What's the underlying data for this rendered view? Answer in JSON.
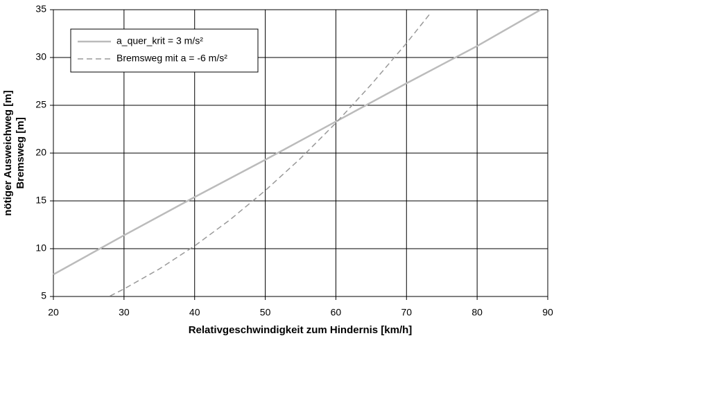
{
  "chart_data": {
    "type": "line",
    "xlabel": "Relativgeschwindigkeit zum Hindernis [km/h]",
    "ylabel": [
      "nötiger Ausweichweg [m]",
      "Bremsweg [m]"
    ],
    "xlim": [
      20,
      90
    ],
    "xticks": [
      20,
      30,
      40,
      50,
      60,
      70,
      80,
      90
    ],
    "ylim": [
      5,
      35
    ],
    "yticks": [
      5,
      10,
      15,
      20,
      25,
      30,
      35
    ],
    "grid": true,
    "legend": "upper left",
    "series": [
      {
        "name": "a_quer_krit =  3 m/s²",
        "color": "#bbbbbb",
        "dash": false,
        "x": [
          20,
          30,
          40,
          50,
          60,
          70,
          80,
          89
        ],
        "values": [
          7.3,
          11.4,
          15.4,
          19.3,
          23.3,
          27.3,
          31.2,
          35
        ]
      },
      {
        "name": "Bremsweg mit a = -6 m/s²",
        "color": "#999999",
        "dash": true,
        "x": [
          28,
          30,
          35,
          40,
          45,
          50,
          55,
          60,
          65,
          70,
          73.5
        ],
        "values": [
          5.04,
          5.79,
          7.88,
          10.29,
          13.02,
          16.08,
          19.45,
          23.15,
          27.17,
          31.5,
          34.74
        ]
      }
    ]
  }
}
